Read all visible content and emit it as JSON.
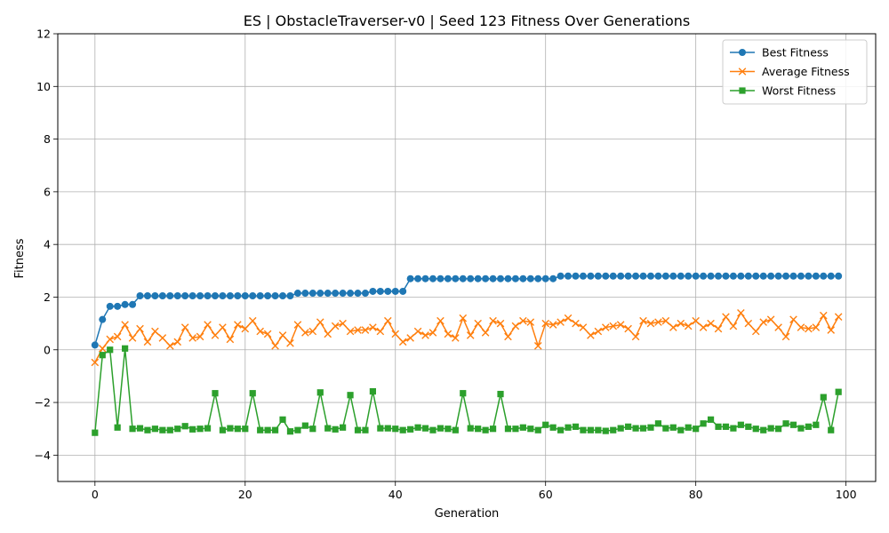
{
  "chart_data": {
    "type": "line",
    "title": "ES | ObstacleTraverser-v0 | Seed 123 Fitness Over Generations",
    "xlabel": "Generation",
    "ylabel": "Fitness",
    "xlim": [
      -4.95,
      103.95
    ],
    "ylim": [
      -5,
      12
    ],
    "xticks": [
      0,
      20,
      40,
      60,
      80,
      100
    ],
    "yticks": [
      -4,
      -2,
      0,
      2,
      4,
      6,
      8,
      10,
      12
    ],
    "grid": true,
    "legend_position": "top-right",
    "series": [
      {
        "name": "Best Fitness",
        "color": "#1f77b4",
        "marker": "circle",
        "values": [
          0.18,
          1.15,
          1.65,
          1.65,
          1.72,
          1.72,
          2.05,
          2.05,
          2.05,
          2.05,
          2.05,
          2.05,
          2.05,
          2.05,
          2.05,
          2.05,
          2.05,
          2.05,
          2.05,
          2.05,
          2.05,
          2.05,
          2.05,
          2.05,
          2.05,
          2.05,
          2.05,
          2.15,
          2.15,
          2.15,
          2.15,
          2.15,
          2.15,
          2.15,
          2.15,
          2.15,
          2.15,
          2.22,
          2.22,
          2.22,
          2.22,
          2.22,
          2.7,
          2.7,
          2.7,
          2.7,
          2.7,
          2.7,
          2.7,
          2.7,
          2.7,
          2.7,
          2.7,
          2.7,
          2.7,
          2.7,
          2.7,
          2.7,
          2.7,
          2.7,
          2.7,
          2.7,
          2.8,
          2.8,
          2.8,
          2.8,
          2.8,
          2.8,
          2.8,
          2.8,
          2.8,
          2.8,
          2.8,
          2.8,
          2.8,
          2.8,
          2.8,
          2.8,
          2.8,
          2.8,
          2.8,
          2.8,
          2.8,
          2.8,
          2.8,
          2.8,
          2.8,
          2.8,
          2.8,
          2.8,
          2.8,
          2.8,
          2.8,
          2.8,
          2.8,
          2.8,
          2.8,
          2.8,
          2.8,
          2.8
        ]
      },
      {
        "name": "Average Fitness",
        "color": "#ff7f0e",
        "marker": "x",
        "values": [
          -0.48,
          0.05,
          0.4,
          0.5,
          0.95,
          0.45,
          0.8,
          0.3,
          0.7,
          0.45,
          0.15,
          0.3,
          0.85,
          0.45,
          0.5,
          0.95,
          0.55,
          0.85,
          0.4,
          0.95,
          0.8,
          1.1,
          0.7,
          0.6,
          0.15,
          0.55,
          0.25,
          0.95,
          0.65,
          0.7,
          1.05,
          0.6,
          0.9,
          1.0,
          0.7,
          0.75,
          0.75,
          0.85,
          0.7,
          1.1,
          0.6,
          0.3,
          0.45,
          0.7,
          0.55,
          0.65,
          1.1,
          0.6,
          0.45,
          1.2,
          0.55,
          1.0,
          0.65,
          1.1,
          1.0,
          0.5,
          0.9,
          1.1,
          1.05,
          0.15,
          1.0,
          0.95,
          1.05,
          1.2,
          1.0,
          0.85,
          0.55,
          0.7,
          0.85,
          0.9,
          0.95,
          0.8,
          0.5,
          1.1,
          1.0,
          1.05,
          1.1,
          0.85,
          1.0,
          0.9,
          1.1,
          0.85,
          1.0,
          0.8,
          1.25,
          0.9,
          1.4,
          1.0,
          0.7,
          1.05,
          1.15,
          0.85,
          0.5,
          1.15,
          0.85,
          0.8,
          0.85,
          1.3,
          0.75,
          1.25
        ]
      },
      {
        "name": "Worst Fitness",
        "color": "#2ca02c",
        "marker": "square",
        "values": [
          -3.15,
          -0.2,
          0.0,
          -2.95,
          0.05,
          -3.0,
          -2.98,
          -3.05,
          -3.0,
          -3.05,
          -3.05,
          -3.0,
          -2.9,
          -3.02,
          -3.0,
          -2.98,
          -1.65,
          -3.05,
          -2.98,
          -3.0,
          -3.0,
          -1.65,
          -3.05,
          -3.05,
          -3.05,
          -2.65,
          -3.1,
          -3.05,
          -2.88,
          -3.0,
          -1.62,
          -2.98,
          -3.02,
          -2.95,
          -1.72,
          -3.05,
          -3.05,
          -1.58,
          -2.98,
          -2.98,
          -3.0,
          -3.05,
          -3.02,
          -2.95,
          -2.98,
          -3.05,
          -2.98,
          -3.0,
          -3.05,
          -1.65,
          -2.98,
          -3.0,
          -3.05,
          -3.0,
          -1.68,
          -3.0,
          -3.0,
          -2.95,
          -3.0,
          -3.05,
          -2.85,
          -2.95,
          -3.05,
          -2.95,
          -2.92,
          -3.05,
          -3.05,
          -3.05,
          -3.08,
          -3.05,
          -2.98,
          -2.92,
          -2.98,
          -2.98,
          -2.95,
          -2.8,
          -2.98,
          -2.95,
          -3.05,
          -2.95,
          -3.0,
          -2.8,
          -2.65,
          -2.92,
          -2.92,
          -2.98,
          -2.85,
          -2.92,
          -3.0,
          -3.05,
          -2.98,
          -3.0,
          -2.8,
          -2.85,
          -2.98,
          -2.92,
          -2.85,
          -1.8,
          -3.05,
          -1.6
        ]
      }
    ]
  }
}
